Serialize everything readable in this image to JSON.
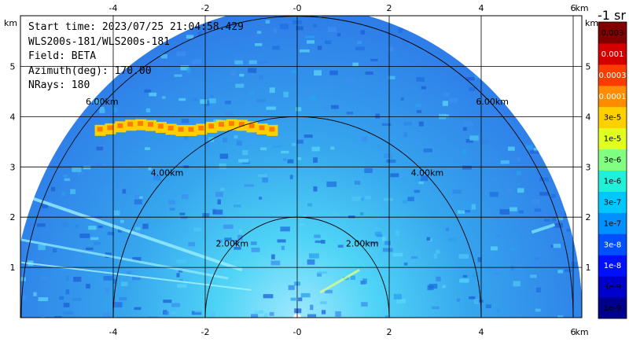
{
  "info": {
    "start_time": "Start time: 2023/07/25 21:04:58.429",
    "instrument": "WLS200s-181/WLS200s-181",
    "field": "Field: BETA",
    "azimuth": "Azimuth(deg): 170.00",
    "nrays": "NRays: 180"
  },
  "chart_data": {
    "type": "heatmap",
    "projection": "RHI half-disk",
    "x_unit": "km",
    "y_unit": "km",
    "x_ticks": [
      "-4",
      "-2",
      "-0",
      "2",
      "4",
      "6"
    ],
    "y_ticks": [
      "5",
      "4",
      "3",
      "2",
      "1"
    ],
    "xlim": [
      -6,
      6.1
    ],
    "ylim": [
      0,
      5.45
    ],
    "range_rings": [
      {
        "radius_km": 2,
        "label": "2.00km"
      },
      {
        "radius_km": 4,
        "label": "4.00km"
      },
      {
        "radius_km": 6,
        "label": "6.00km"
      }
    ],
    "max_range_km": 6.2,
    "features": [
      {
        "name": "aerosol layer",
        "height_km": 3.8,
        "x_from_km": -4.4,
        "x_to_km": -0.5,
        "level": "3e-5"
      }
    ],
    "colorbar": {
      "title": "-1 sr",
      "labels": [
        "1e-9",
        "3e-9",
        "1e-8",
        "3e-8",
        "1e-7",
        "3e-7",
        "1e-6",
        "3e-6",
        "1e-5",
        "3e-5",
        "0.0001",
        "0.0003",
        "0.001",
        "0.003"
      ],
      "colors": [
        "#00008f",
        "#0000cd",
        "#0010ff",
        "#0050ff",
        "#0090ff",
        "#00c8ff",
        "#20f0d8",
        "#80ff80",
        "#e0ff20",
        "#ffd000",
        "#ff8c00",
        "#ff3c00",
        "#d40000",
        "#800000"
      ],
      "label_colors": [
        "#000",
        "#000",
        "#fff",
        "#fff",
        "#000",
        "#000",
        "#000",
        "#000",
        "#000",
        "#000",
        "#fff",
        "#fff",
        "#fff",
        "#000"
      ]
    }
  }
}
